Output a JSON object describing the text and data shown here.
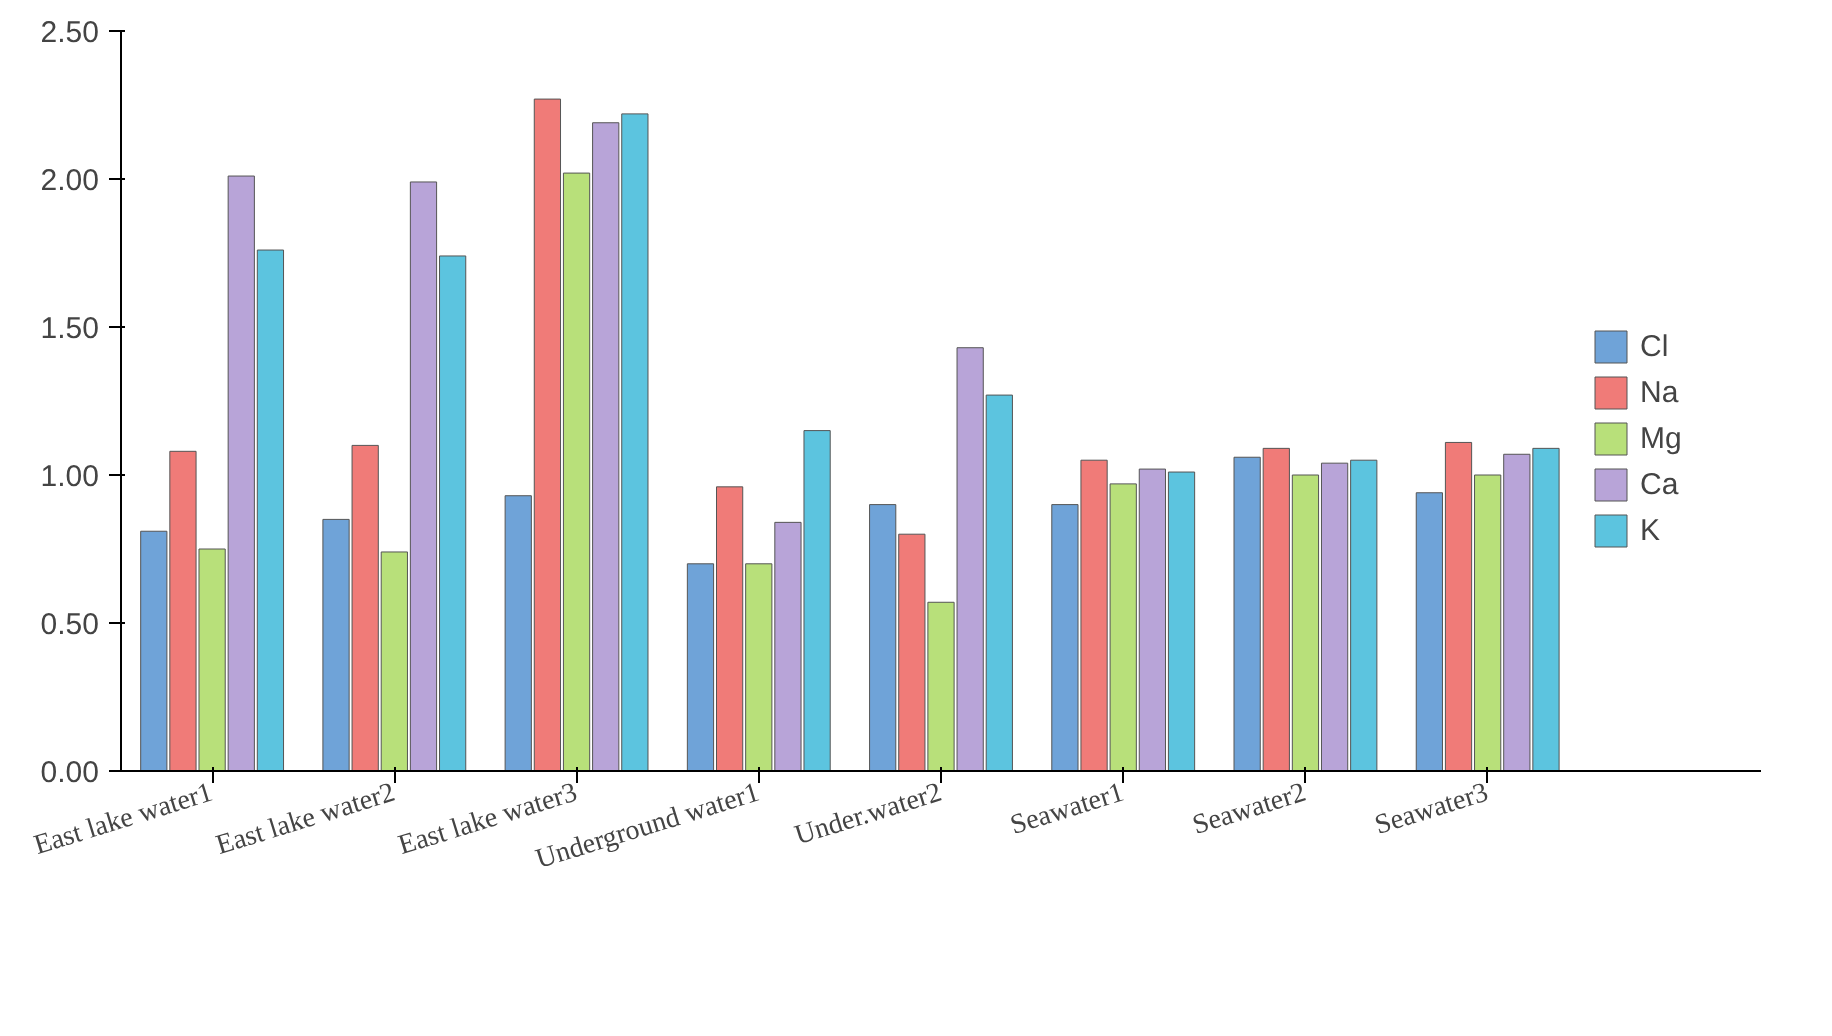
{
  "chart_data": {
    "type": "bar",
    "categories": [
      "East lake water1",
      "East lake water2",
      "East lake water3",
      "Underground water1",
      "Under.water2",
      "Seawater1",
      "Seawater2",
      "Seawater3"
    ],
    "series": [
      {
        "name": "Cl",
        "color": "#6fa3d8",
        "values": [
          0.81,
          0.85,
          0.93,
          0.7,
          0.9,
          0.9,
          1.06,
          0.94
        ]
      },
      {
        "name": "Na",
        "color": "#f07b78",
        "values": [
          1.08,
          1.1,
          2.27,
          0.96,
          0.8,
          1.05,
          1.09,
          1.11
        ]
      },
      {
        "name": "Mg",
        "color": "#b8e07a",
        "values": [
          0.75,
          0.74,
          2.02,
          0.7,
          0.57,
          0.97,
          1.0,
          1.0
        ]
      },
      {
        "name": "Ca",
        "color": "#b8a4d8",
        "values": [
          2.01,
          1.99,
          2.19,
          0.84,
          1.43,
          1.02,
          1.04,
          1.07
        ]
      },
      {
        "name": "K",
        "color": "#5cc4df",
        "values": [
          1.76,
          1.74,
          2.22,
          1.15,
          1.27,
          1.01,
          1.05,
          1.09
        ]
      }
    ],
    "ylim": [
      0,
      2.5
    ],
    "yticks": [
      {
        "value": 0,
        "label": "0.00"
      },
      {
        "value": 0.5,
        "label": "0.50"
      },
      {
        "value": 1,
        "label": "1.00"
      },
      {
        "value": 1.5,
        "label": "1.50"
      },
      {
        "value": 2,
        "label": "2.00"
      },
      {
        "value": 2.5,
        "label": "2.50"
      }
    ],
    "grid": false,
    "legend": "right"
  }
}
